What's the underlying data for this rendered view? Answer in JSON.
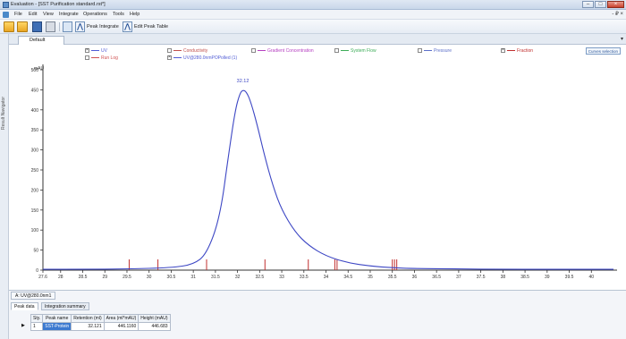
{
  "window": {
    "title": "Evaluation - [SST Purification standard.rst*]",
    "min_glyph": "–",
    "max_glyph": "□",
    "close_glyph": "×"
  },
  "menu": {
    "items": [
      "File",
      "Edit",
      "View",
      "Integrate",
      "Operations",
      "Tools",
      "Help"
    ],
    "right_glyphs": "- ₽ ×"
  },
  "toolbar": {
    "peak_integrate_label": "Peak Integrate",
    "edit_peak_table_label": "Edit Peak Table"
  },
  "side_panel": {
    "label": "Result Navigator"
  },
  "doc_tab": {
    "label": "Default"
  },
  "chart_controls": {
    "corner_button": "Curves selection"
  },
  "legend": [
    {
      "label": "UV",
      "checked": true,
      "color": "#4f5bd5"
    },
    {
      "label": "Conductivity",
      "checked": false,
      "color": "#c0504d"
    },
    {
      "label": "Gradient Concentration",
      "checked": false,
      "color": "#b53fc0"
    },
    {
      "label": "System Flow",
      "checked": false,
      "color": "#3dac58"
    },
    {
      "label": "Pressure",
      "checked": false,
      "color": "#5b6fc9"
    },
    {
      "label": "Fraction",
      "checked": true,
      "color": "#c0302f"
    },
    {
      "label": "Run Log",
      "checked": false,
      "color": "#d05050"
    },
    {
      "label": "UV@280.0nmPOPolled (1)",
      "checked": true,
      "color": "#4f5bd5"
    }
  ],
  "chart_data": {
    "type": "line",
    "y_unit_label": "mAU",
    "ylim": [
      0,
      500
    ],
    "xlim": [
      27.6,
      40.5
    ],
    "y_ticks": [
      0,
      50,
      100,
      150,
      200,
      250,
      300,
      350,
      400,
      450,
      500
    ],
    "x_ticks": [
      27.6,
      28.0,
      28.5,
      29.0,
      29.5,
      30.0,
      30.5,
      31.0,
      31.5,
      32.0,
      32.5,
      33.0,
      33.5,
      34.0,
      34.5,
      35.0,
      35.5,
      36.0,
      36.5,
      37.0,
      37.5,
      38.0,
      38.5,
      39.0,
      39.5,
      40.0
    ],
    "x_tick_labels": [
      "27.6",
      "28",
      "28.5",
      "29",
      "29.5",
      "30",
      "30.5",
      "31",
      "31.5",
      "32",
      "32.5",
      "33",
      "33.5",
      "34",
      "34.5",
      "35",
      "35.5",
      "36",
      "36.5",
      "37",
      "37.5",
      "38",
      "38.5",
      "39",
      "39.5",
      "40"
    ],
    "peak_label": "32.12",
    "peak_label_x": 32.12,
    "peak_label_y": 462,
    "series": [
      {
        "name": "UV@280.0nmPOPolled (1)",
        "color": "#3d47c4",
        "x": [
          27.6,
          28.5,
          29.5,
          30.5,
          31.0,
          31.3,
          31.6,
          31.8,
          31.95,
          32.05,
          32.12,
          32.2,
          32.3,
          32.45,
          32.6,
          32.8,
          33.0,
          33.3,
          33.6,
          34.0,
          34.5,
          35.0,
          35.5,
          36.0,
          37.0,
          38.0,
          39.0,
          40.0,
          40.5
        ],
        "y": [
          2,
          2,
          3,
          6,
          14,
          40,
          130,
          290,
          400,
          440,
          450,
          445,
          420,
          360,
          290,
          210,
          150,
          95,
          62,
          35,
          18,
          10,
          6,
          4,
          3,
          2,
          2,
          2,
          2
        ]
      }
    ],
    "fraction_marks": [
      29.55,
      30.2,
      31.3,
      32.62,
      33.6,
      34.2,
      34.25,
      35.5,
      35.55,
      35.6
    ],
    "grid": false,
    "legend_position": "top"
  },
  "bottom_panel": {
    "curve_tab": "A: UV@280.0nm1",
    "subtabs": [
      "Peak data",
      "Integration summary"
    ],
    "table": {
      "headers": [
        "Sty.",
        "Peak name",
        "Retention (ml)",
        "Area (ml*mAU)",
        "Height (mAU)"
      ],
      "rows": [
        [
          "1",
          "SST-Protein",
          "32.121",
          "446.1160",
          "446.683"
        ]
      ],
      "row_marker": "▶"
    }
  }
}
